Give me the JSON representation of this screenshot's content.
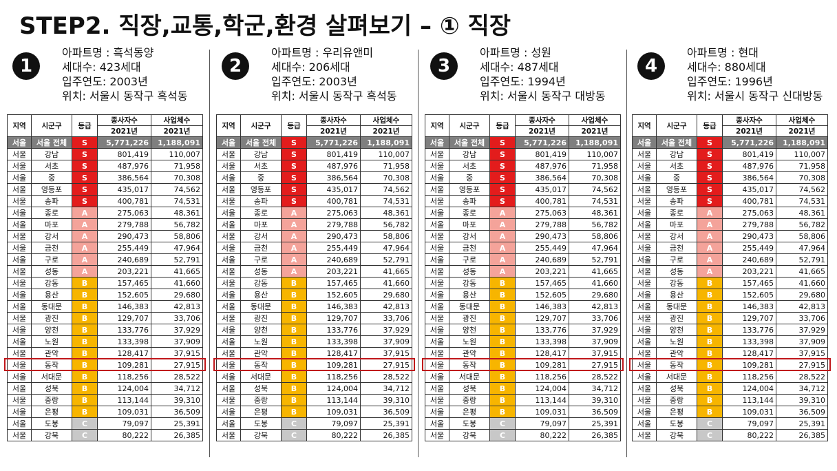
{
  "title": "STEP2. 직장,교통,학군,환경 살펴보기 – ① 직장",
  "colors": {
    "S": "#e31c1c",
    "A": "#f4a39a",
    "B": "#f7b500",
    "C": "#c8c8c8",
    "highlight": "#c0161a"
  },
  "panels": [
    {
      "number": "1",
      "name": "아파트명 : 흑석동양",
      "households": "세대수: 423세대",
      "year": "입주연도: 2003년",
      "location": "위치: 서울시 동작구 흑석동"
    },
    {
      "number": "2",
      "name": "아파트명 : 우리유앤미",
      "households": "세대수: 206세대",
      "year": "입주연도: 2003년",
      "location": "위치: 서울시 동작구 흑석동"
    },
    {
      "number": "3",
      "name": "아파트명 : 성원",
      "households": "세대수: 487세대",
      "year": "입주연도: 1994년",
      "location": "위치: 서울시 동작구 대방동"
    },
    {
      "number": "4",
      "name": "아파트명 : 현대",
      "households": "세대수: 880세대",
      "year": "입주연도: 1996년",
      "location": "위치: 서울시 동작구 신대방동"
    }
  ],
  "table": {
    "headers": {
      "region": "지역",
      "district": "시군구",
      "grade": "등급",
      "employees": "종사자수",
      "businesses": "사업체수",
      "year_emp": "2021년",
      "year_biz": "2021년"
    },
    "rows": [
      {
        "region": "서울",
        "district": "서울 전체",
        "grade": "S",
        "employees": "5,771,226",
        "businesses": "1,188,091"
      },
      {
        "region": "서울",
        "district": "강남",
        "grade": "S",
        "employees": "801,419",
        "businesses": "110,007"
      },
      {
        "region": "서울",
        "district": "서초",
        "grade": "S",
        "employees": "487,976",
        "businesses": "71,958"
      },
      {
        "region": "서울",
        "district": "중",
        "grade": "S",
        "employees": "386,564",
        "businesses": "70,308"
      },
      {
        "region": "서울",
        "district": "영등포",
        "grade": "S",
        "employees": "435,017",
        "businesses": "74,562"
      },
      {
        "region": "서울",
        "district": "송파",
        "grade": "S",
        "employees": "400,781",
        "businesses": "74,531"
      },
      {
        "region": "서울",
        "district": "종로",
        "grade": "A",
        "employees": "275,063",
        "businesses": "48,361"
      },
      {
        "region": "서울",
        "district": "마포",
        "grade": "A",
        "employees": "279,788",
        "businesses": "56,782"
      },
      {
        "region": "서울",
        "district": "강서",
        "grade": "A",
        "employees": "290,473",
        "businesses": "58,806"
      },
      {
        "region": "서울",
        "district": "금천",
        "grade": "A",
        "employees": "255,449",
        "businesses": "47,964"
      },
      {
        "region": "서울",
        "district": "구로",
        "grade": "A",
        "employees": "240,689",
        "businesses": "52,791"
      },
      {
        "region": "서울",
        "district": "성동",
        "grade": "A",
        "employees": "203,221",
        "businesses": "41,665"
      },
      {
        "region": "서울",
        "district": "강동",
        "grade": "B",
        "employees": "157,465",
        "businesses": "41,660"
      },
      {
        "region": "서울",
        "district": "용산",
        "grade": "B",
        "employees": "152,605",
        "businesses": "29,680"
      },
      {
        "region": "서울",
        "district": "동대문",
        "grade": "B",
        "employees": "146,383",
        "businesses": "42,813"
      },
      {
        "region": "서울",
        "district": "광진",
        "grade": "B",
        "employees": "129,707",
        "businesses": "33,706"
      },
      {
        "region": "서울",
        "district": "양천",
        "grade": "B",
        "employees": "133,776",
        "businesses": "37,929"
      },
      {
        "region": "서울",
        "district": "노원",
        "grade": "B",
        "employees": "133,398",
        "businesses": "37,909"
      },
      {
        "region": "서울",
        "district": "관악",
        "grade": "B",
        "employees": "128,417",
        "businesses": "37,915"
      },
      {
        "region": "서울",
        "district": "동작",
        "grade": "B",
        "employees": "109,281",
        "businesses": "27,915",
        "highlighted": true
      },
      {
        "region": "서울",
        "district": "서대문",
        "grade": "B",
        "employees": "118,256",
        "businesses": "28,522"
      },
      {
        "region": "서울",
        "district": "성북",
        "grade": "B",
        "employees": "124,004",
        "businesses": "34,712"
      },
      {
        "region": "서울",
        "district": "중랑",
        "grade": "B",
        "employees": "113,144",
        "businesses": "39,310"
      },
      {
        "region": "서울",
        "district": "은평",
        "grade": "B",
        "employees": "109,031",
        "businesses": "36,509"
      },
      {
        "region": "서울",
        "district": "도봉",
        "grade": "C",
        "employees": "79,097",
        "businesses": "25,391"
      },
      {
        "region": "서울",
        "district": "강북",
        "grade": "C",
        "employees": "80,222",
        "businesses": "26,385"
      }
    ]
  }
}
